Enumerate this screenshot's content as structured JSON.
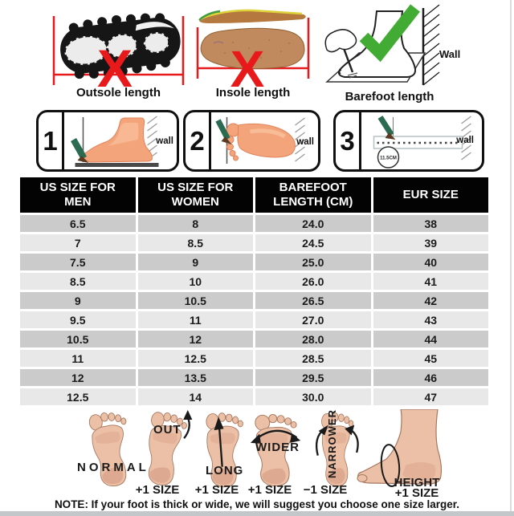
{
  "measure_methods": [
    {
      "name": "outsole",
      "label": "Outsole length",
      "verdict": "wrong",
      "verdict_glyph": "X"
    },
    {
      "name": "insole",
      "label": "Insole length",
      "verdict": "wrong",
      "verdict_glyph": "X"
    },
    {
      "name": "barefoot",
      "label": "Barefoot length",
      "verdict": "correct",
      "wall_label": "Wall"
    }
  ],
  "steps": [
    {
      "number": "1",
      "wall_label": "wall"
    },
    {
      "number": "2",
      "wall_label": "wall"
    },
    {
      "number": "3",
      "wall_label": "wall",
      "measurement": "11.5CM"
    }
  ],
  "size_table": {
    "headers": [
      "US SIZE FOR MEN",
      "US SIZE FOR WOMEN",
      "BAREFOOT LENGTH (CM)",
      "EUR SIZE"
    ],
    "rows": [
      [
        "6.5",
        "8",
        "24.0",
        "38"
      ],
      [
        "7",
        "8.5",
        "24.5",
        "39"
      ],
      [
        "7.5",
        "9",
        "25.0",
        "40"
      ],
      [
        "8.5",
        "10",
        "26.0",
        "41"
      ],
      [
        "9",
        "10.5",
        "26.5",
        "42"
      ],
      [
        "9.5",
        "11",
        "27.0",
        "43"
      ],
      [
        "10.5",
        "12",
        "28.0",
        "44"
      ],
      [
        "11",
        "12.5",
        "28.5",
        "45"
      ],
      [
        "12",
        "13.5",
        "29.5",
        "46"
      ],
      [
        "12.5",
        "14",
        "30.0",
        "47"
      ]
    ]
  },
  "foot_types": [
    {
      "label": "NORMAL",
      "size_note": ""
    },
    {
      "label": "OUT",
      "size_note": "+1 SIZE"
    },
    {
      "label": "LONG",
      "size_note": "+1 SIZE"
    },
    {
      "label": "WIDER",
      "size_note": "+1 SIZE"
    },
    {
      "label": "NARROWER",
      "size_note": "−1 SIZE"
    },
    {
      "label": "HEIGHT",
      "size_note": "+1 SIZE"
    }
  ],
  "note": "NOTE: If your foot is thick or wide, we will suggest you choose one size larger.",
  "colors": {
    "wrong_mark": "#e8191b",
    "correct_mark": "#41ab34",
    "table_header_bg": "#000000",
    "row_dark": "#cbcbcb",
    "row_light": "#e8e8e8"
  }
}
